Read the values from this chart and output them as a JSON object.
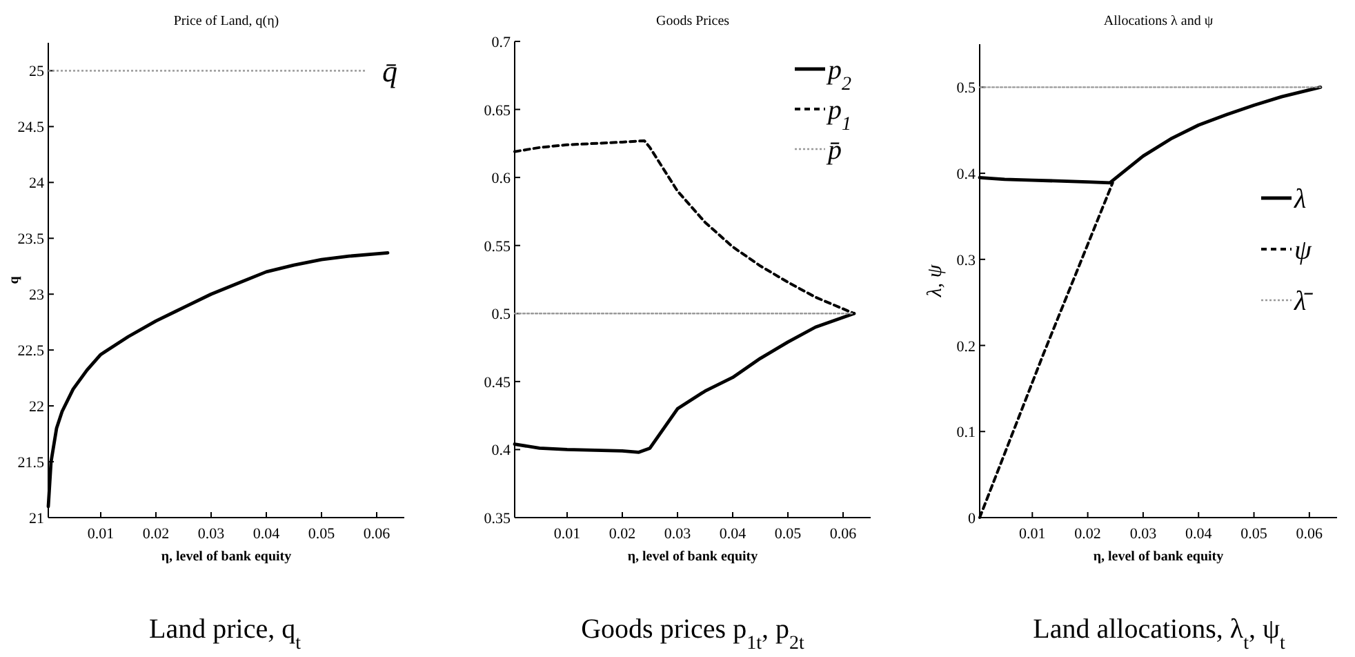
{
  "chart_data": [
    {
      "type": "line",
      "title": "Price of Land, q(η)",
      "xlabel": "η, level of bank equity",
      "ylabel": "q",
      "xlim": [
        0.0005,
        0.065
      ],
      "ylim": [
        21,
        25.25
      ],
      "xticks": [
        0.01,
        0.02,
        0.03,
        0.04,
        0.05,
        0.06
      ],
      "yticks": [
        21,
        21.5,
        22,
        22.5,
        23,
        23.5,
        24,
        24.5,
        25
      ],
      "x": [
        0.0005,
        0.001,
        0.002,
        0.003,
        0.005,
        0.0075,
        0.01,
        0.015,
        0.02,
        0.025,
        0.03,
        0.035,
        0.04,
        0.045,
        0.05,
        0.055,
        0.062
      ],
      "series": [
        {
          "color": "#000000",
          "line_style": "solid",
          "values": [
            21.1,
            21.5,
            21.8,
            21.95,
            22.15,
            22.32,
            22.46,
            22.62,
            22.76,
            22.88,
            23.0,
            23.1,
            23.2,
            23.26,
            23.31,
            23.34,
            23.37
          ]
        }
      ],
      "ref_lines": [
        {
          "axis": "y",
          "value": 25,
          "label": "q̄",
          "color": "#999999",
          "line_style": "dotted"
        }
      ],
      "annotations": [
        "Land price, q$_{t}$"
      ]
    },
    {
      "type": "line",
      "title": "Goods Prices",
      "xlabel": "η, level of bank equity",
      "xlim": [
        0.0005,
        0.065
      ],
      "ylim": [
        0.35,
        0.7
      ],
      "xticks": [
        0.01,
        0.02,
        0.03,
        0.04,
        0.05,
        0.06
      ],
      "yticks": [
        0.35,
        0.4,
        0.45,
        0.5,
        0.55,
        0.6,
        0.65,
        0.7
      ],
      "legend": "top right",
      "x": [
        0.0005,
        0.005,
        0.01,
        0.02,
        0.023,
        0.025,
        0.03,
        0.035,
        0.04,
        0.045,
        0.05,
        0.055,
        0.062
      ],
      "series": [
        {
          "name": "p$_{2}$",
          "color": "#000000",
          "line_style": "solid",
          "values": [
            0.404,
            0.401,
            0.4,
            0.399,
            0.398,
            0.401,
            0.43,
            0.443,
            0.453,
            0.467,
            0.479,
            0.49,
            0.5
          ]
        },
        {
          "name": "p$_{1}$",
          "color": "#000000",
          "line_style": "dashed",
          "x": [
            0.0005,
            0.005,
            0.01,
            0.02,
            0.024,
            0.025,
            0.03,
            0.035,
            0.04,
            0.045,
            0.05,
            0.055,
            0.062
          ],
          "values": [
            0.619,
            0.622,
            0.624,
            0.626,
            0.627,
            0.622,
            0.59,
            0.567,
            0.549,
            0.535,
            0.523,
            0.512,
            0.5
          ]
        },
        {
          "name": "p̄",
          "color": "#999999",
          "line_style": "dotted",
          "x": [
            0.0005,
            0.062
          ],
          "values": [
            0.5,
            0.5
          ]
        }
      ],
      "annotations": [
        "Goods prices p$_{1t}$, p$_{2t}$"
      ]
    },
    {
      "type": "line",
      "title": "Allocations λ and ψ",
      "xlabel": "η, level of bank equity",
      "ylabel": "λ,  ψ",
      "xlim": [
        0.0005,
        0.065
      ],
      "ylim": [
        0,
        0.55
      ],
      "xticks": [
        0.01,
        0.02,
        0.03,
        0.04,
        0.05,
        0.06
      ],
      "yticks": [
        0,
        0.1,
        0.2,
        0.3,
        0.4,
        0.5
      ],
      "legend": "right",
      "x": [
        0.0005,
        0.005,
        0.01,
        0.02,
        0.024,
        0.03,
        0.035,
        0.04,
        0.045,
        0.05,
        0.055,
        0.062
      ],
      "series": [
        {
          "name": "λ",
          "color": "#000000",
          "line_style": "solid",
          "values": [
            0.395,
            0.393,
            0.392,
            0.39,
            0.389,
            0.42,
            0.44,
            0.456,
            0.468,
            0.479,
            0.489,
            0.5
          ]
        },
        {
          "name": "ψ",
          "color": "#000000",
          "line_style": "dashed",
          "x": [
            0.0005,
            0.012,
            0.0245
          ],
          "values": [
            0,
            0.19,
            0.389
          ]
        },
        {
          "name": "λ̄",
          "color": "#999999",
          "line_style": "dotted",
          "x": [
            0.0005,
            0.062
          ],
          "values": [
            0.5,
            0.5
          ]
        }
      ],
      "annotations": [
        "Land allocations, λ$_{t}$, ψ$_{t}$"
      ]
    }
  ]
}
